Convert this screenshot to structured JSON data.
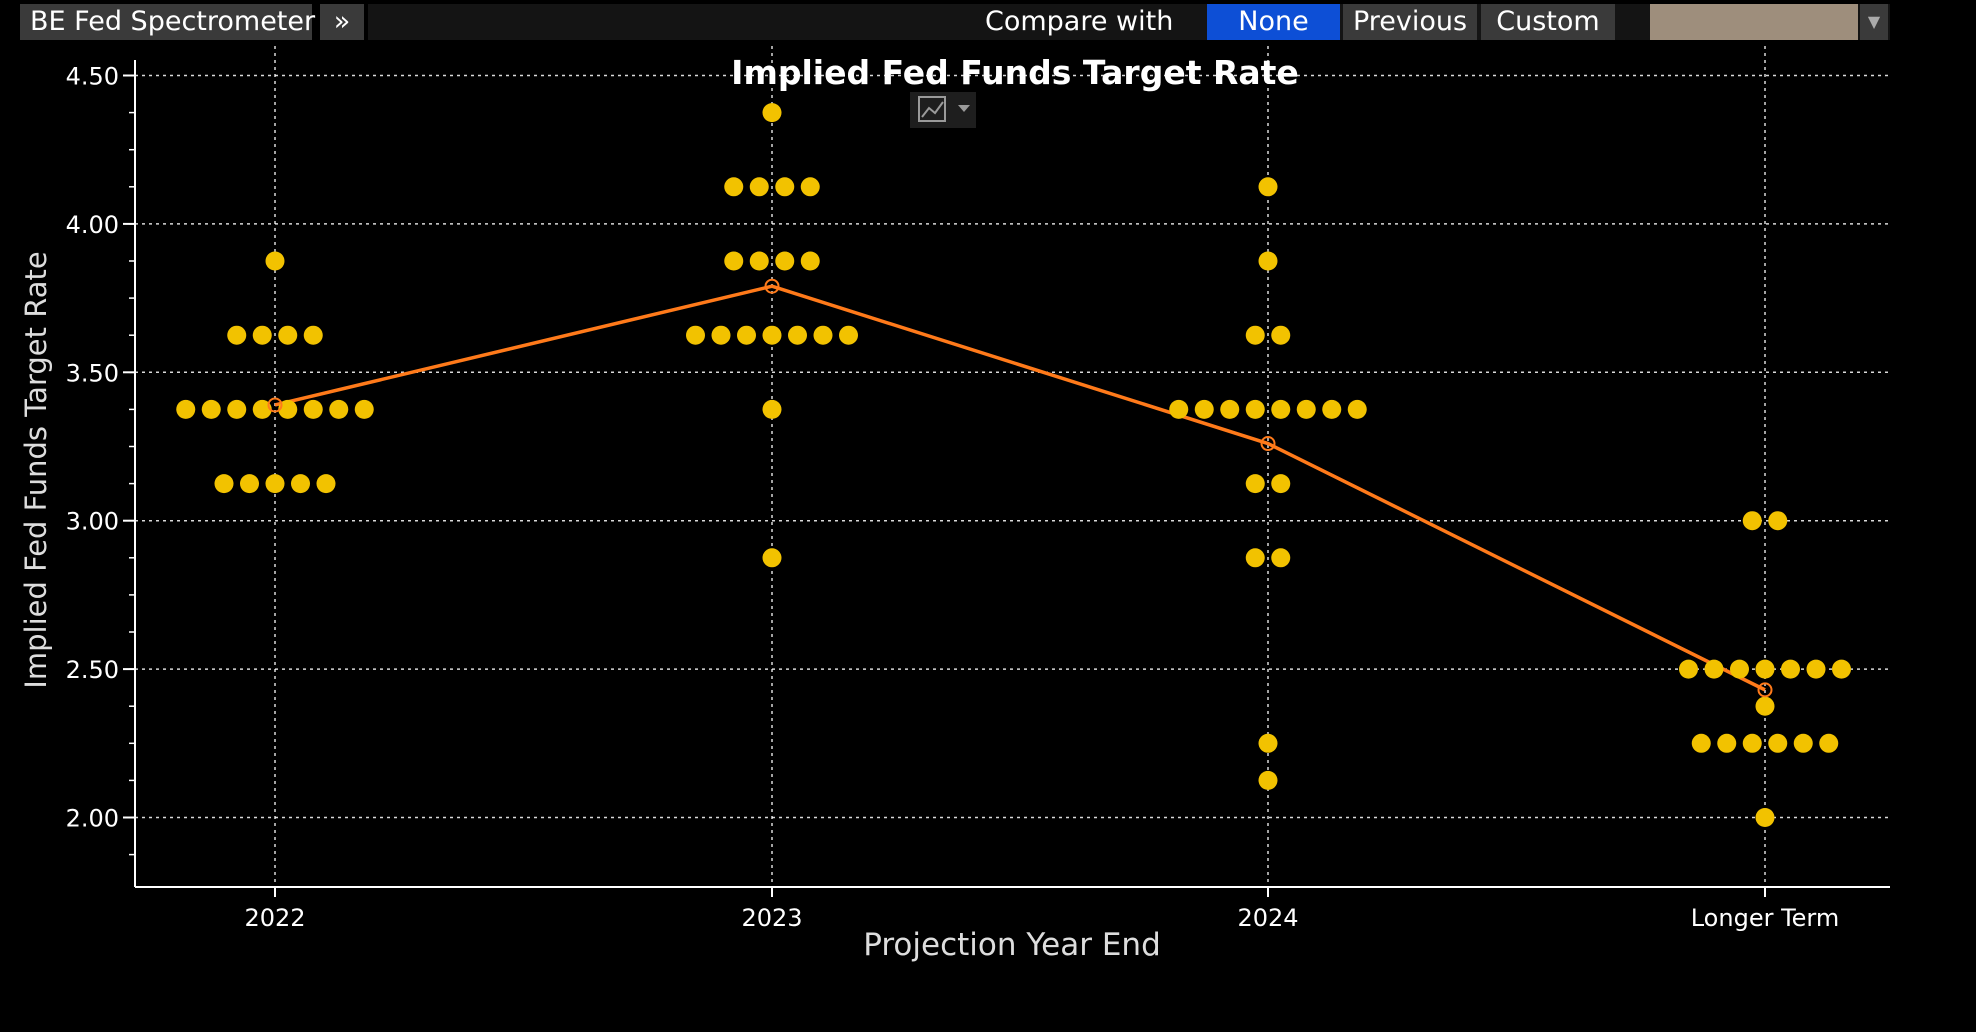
{
  "toolbar": {
    "app_title": "BE Fed Spectrometer",
    "compare_label": "Compare with",
    "compare_options": [
      "None",
      "Previous",
      "Custom"
    ],
    "selected_option": "None",
    "swatch_color": "#9e8e7c"
  },
  "colors": {
    "dot": "#f2c200",
    "median_line": "#ff7a1a",
    "grid": "#ffffff",
    "background": "#000000",
    "selected_button": "#0d4fd6"
  },
  "chart_data": {
    "type": "scatter",
    "title": "Implied Fed Funds Target Rate",
    "xlabel": "Projection Year End",
    "ylabel": "Implied Fed Funds Target Rate",
    "categories": [
      "2022",
      "2023",
      "2024",
      "Longer Term"
    ],
    "ylim": [
      1.75,
      4.6
    ],
    "yticks": [
      "2.00",
      "2.50",
      "3.00",
      "3.50",
      "4.00",
      "4.50"
    ],
    "grid": true,
    "dots": [
      {
        "category": "2022",
        "levels": [
          {
            "rate": 3.875,
            "count": 1
          },
          {
            "rate": 3.625,
            "count": 4
          },
          {
            "rate": 3.375,
            "count": 8
          },
          {
            "rate": 3.125,
            "count": 5
          }
        ]
      },
      {
        "category": "2023",
        "levels": [
          {
            "rate": 4.375,
            "count": 1
          },
          {
            "rate": 4.125,
            "count": 4
          },
          {
            "rate": 3.875,
            "count": 4
          },
          {
            "rate": 3.625,
            "count": 7
          },
          {
            "rate": 3.375,
            "count": 1
          },
          {
            "rate": 2.875,
            "count": 1
          }
        ]
      },
      {
        "category": "2024",
        "levels": [
          {
            "rate": 4.125,
            "count": 1
          },
          {
            "rate": 3.875,
            "count": 1
          },
          {
            "rate": 3.625,
            "count": 2
          },
          {
            "rate": 3.375,
            "count": 8
          },
          {
            "rate": 3.125,
            "count": 2
          },
          {
            "rate": 2.875,
            "count": 2
          },
          {
            "rate": 2.25,
            "count": 1
          },
          {
            "rate": 2.125,
            "count": 1
          }
        ]
      },
      {
        "category": "Longer Term",
        "levels": [
          {
            "rate": 3.0,
            "count": 2
          },
          {
            "rate": 2.5,
            "count": 7
          },
          {
            "rate": 2.375,
            "count": 1
          },
          {
            "rate": 2.25,
            "count": 6
          },
          {
            "rate": 2.0,
            "count": 1
          }
        ]
      }
    ],
    "median_series": {
      "x": [
        "2022",
        "2023",
        "2024",
        "Longer Term"
      ],
      "values": [
        3.39,
        3.79,
        3.26,
        2.43
      ]
    }
  }
}
